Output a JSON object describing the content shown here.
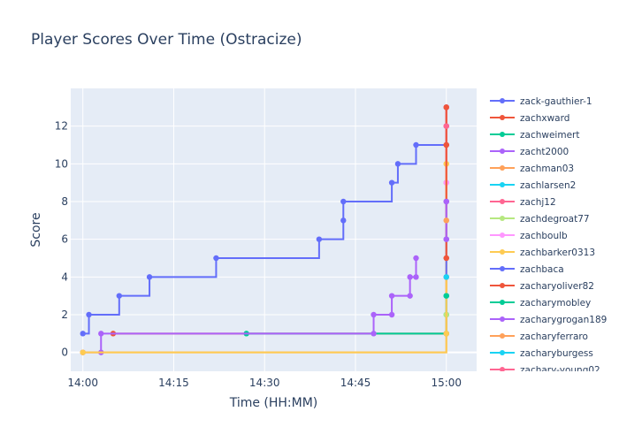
{
  "chart_data": {
    "type": "line",
    "title": "Player Scores Over Time (Ostracize)",
    "xlabel": "Time (HH:MM)",
    "ylabel": "Score",
    "x_unit": "HH:MM",
    "xlim": [
      "13:58",
      "15:05"
    ],
    "ylim": [
      -1,
      14
    ],
    "x_ticks": [
      "14:00",
      "14:15",
      "14:30",
      "14:45",
      "15:00"
    ],
    "y_ticks": [
      0,
      2,
      4,
      6,
      8,
      10,
      12
    ],
    "grid": true,
    "line_shape": "step",
    "legend_position": "right",
    "series": [
      {
        "name": "zack-gauthier-1",
        "color": "#636efa",
        "points": [
          [
            "14:00",
            1
          ],
          [
            "14:01",
            2
          ],
          [
            "14:06",
            3
          ],
          [
            "14:11",
            4
          ],
          [
            "14:22",
            5
          ],
          [
            "14:39",
            6
          ],
          [
            "14:43",
            7
          ],
          [
            "14:43",
            8
          ],
          [
            "14:51",
            9
          ],
          [
            "14:52",
            10
          ],
          [
            "14:55",
            11
          ],
          [
            "15:00",
            11
          ],
          [
            "15:00",
            12
          ],
          [
            "15:00",
            13
          ]
        ]
      },
      {
        "name": "zachxward",
        "color": "#EF553B",
        "points": [
          [
            "14:05",
            1
          ],
          [
            "15:00",
            1
          ],
          [
            "15:00",
            5
          ],
          [
            "15:00",
            8
          ],
          [
            "15:00",
            11
          ],
          [
            "15:00",
            13
          ]
        ]
      },
      {
        "name": "zachweimert",
        "color": "#00cc96",
        "points": [
          [
            "14:27",
            1
          ],
          [
            "15:00",
            1
          ],
          [
            "15:00",
            3
          ]
        ]
      },
      {
        "name": "zacht2000",
        "color": "#ab63fa",
        "points": [
          [
            "14:00",
            0
          ],
          [
            "14:03",
            0
          ],
          [
            "14:03",
            1
          ],
          [
            "14:48",
            1
          ],
          [
            "14:48",
            2
          ],
          [
            "14:51",
            2
          ],
          [
            "14:51",
            3
          ],
          [
            "14:54",
            3
          ],
          [
            "14:54",
            4
          ],
          [
            "14:55",
            4
          ],
          [
            "14:55",
            5
          ]
        ]
      },
      {
        "name": "zachman03",
        "color": "#FFA15A",
        "points": [
          [
            "14:00",
            0
          ],
          [
            "15:00",
            1
          ],
          [
            "15:00",
            2
          ],
          [
            "15:00",
            7
          ],
          [
            "15:00",
            10
          ]
        ]
      },
      {
        "name": "zachlarsen2",
        "color": "#19d3f3",
        "points": [
          [
            "15:00",
            2
          ],
          [
            "15:00",
            3
          ]
        ]
      },
      {
        "name": "zachj12",
        "color": "#FF6692",
        "points": [
          [
            "15:00",
            9
          ],
          [
            "15:00",
            12
          ],
          [
            "15:00",
            13
          ]
        ]
      },
      {
        "name": "zachdegroat77",
        "color": "#B6E880",
        "points": [
          [
            "15:00",
            2
          ]
        ]
      },
      {
        "name": "zachboulb",
        "color": "#FF97FF",
        "points": [
          [
            "15:00",
            9
          ]
        ]
      },
      {
        "name": "zachbarker0313",
        "color": "#FECB52",
        "points": [
          [
            "14:00",
            0
          ],
          [
            "15:00",
            1
          ],
          [
            "15:00",
            4
          ],
          [
            "15:00",
            10
          ]
        ]
      },
      {
        "name": "zachbaca",
        "color": "#636efa",
        "points": [
          [
            "15:00",
            4
          ],
          [
            "15:00",
            6
          ],
          [
            "15:00",
            8
          ]
        ]
      },
      {
        "name": "zacharyoliver82",
        "color": "#EF553B",
        "points": [
          [
            "15:00",
            5
          ],
          [
            "15:00",
            11
          ],
          [
            "15:00",
            13
          ]
        ]
      },
      {
        "name": "zacharymobley",
        "color": "#00cc96",
        "points": [
          [
            "15:00",
            3
          ]
        ]
      },
      {
        "name": "zacharygrogan189",
        "color": "#ab63fa",
        "points": [
          [
            "15:00",
            6
          ],
          [
            "15:00",
            8
          ]
        ]
      },
      {
        "name": "zacharyferraro",
        "color": "#FFA15A",
        "points": [
          [
            "15:00",
            7
          ]
        ]
      },
      {
        "name": "zacharyburgess",
        "color": "#19d3f3",
        "points": [
          [
            "15:00",
            4
          ]
        ]
      },
      {
        "name": "zachary-young02",
        "color": "#FF6692",
        "points": [
          [
            "15:00",
            12
          ]
        ]
      }
    ]
  }
}
